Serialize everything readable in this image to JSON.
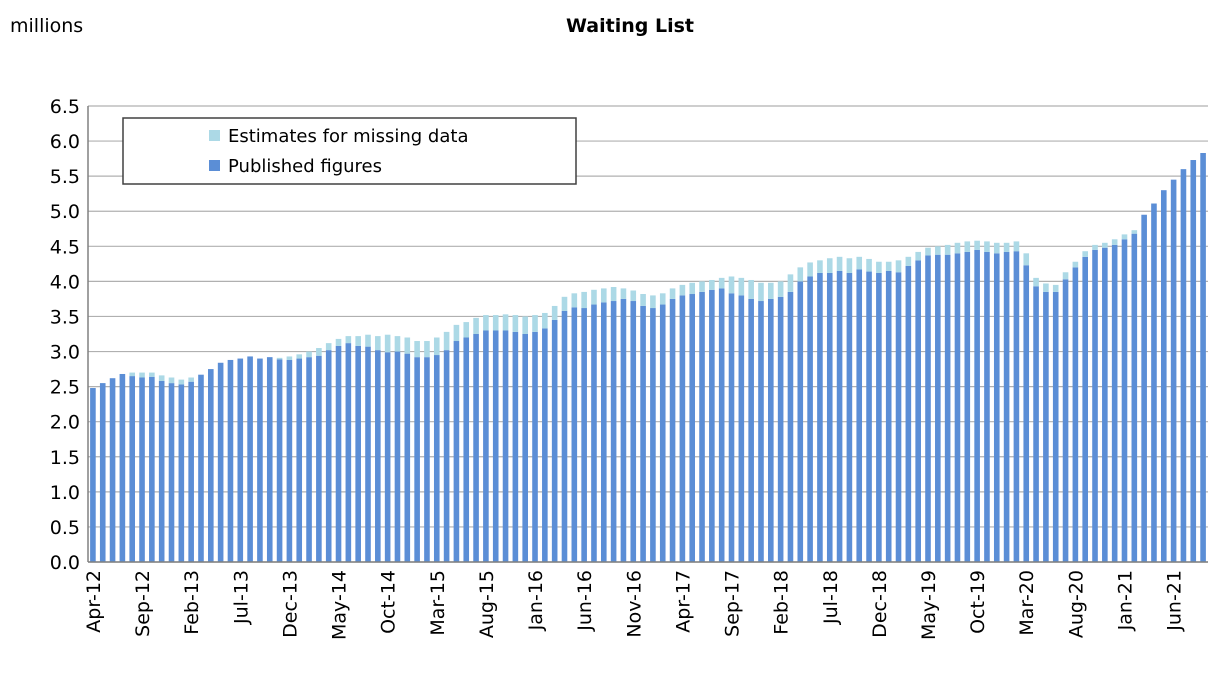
{
  "chart_data": {
    "type": "bar",
    "stacked": true,
    "title": "Waiting List",
    "y_label": "millions",
    "categories": [
      "Apr-12",
      null,
      null,
      null,
      null,
      "Sep-12",
      null,
      null,
      null,
      null,
      "Feb-13",
      null,
      null,
      null,
      null,
      "Jul-13",
      null,
      null,
      null,
      null,
      "Dec-13",
      null,
      null,
      null,
      null,
      "May-14",
      null,
      null,
      null,
      null,
      "Oct-14",
      null,
      null,
      null,
      null,
      "Mar-15",
      null,
      null,
      null,
      null,
      "Aug-15",
      null,
      null,
      null,
      null,
      "Jan-16",
      null,
      null,
      null,
      null,
      "Jun-16",
      null,
      null,
      null,
      null,
      "Nov-16",
      null,
      null,
      null,
      null,
      "Apr-17",
      null,
      null,
      null,
      null,
      "Sep-17",
      null,
      null,
      null,
      null,
      "Feb-18",
      null,
      null,
      null,
      null,
      "Jul-18",
      null,
      null,
      null,
      null,
      "Dec-18",
      null,
      null,
      null,
      null,
      "May-19",
      null,
      null,
      null,
      null,
      "Oct-19",
      null,
      null,
      null,
      null,
      "Mar-20",
      null,
      null,
      null,
      null,
      "Aug-20",
      null,
      null,
      null,
      null,
      "Jan-21",
      null,
      null,
      null,
      null,
      "Jun-21",
      null,
      null,
      null
    ],
    "series": [
      {
        "name": "Published figures",
        "color": "#5b8ed6",
        "values": [
          2.48,
          2.55,
          2.62,
          2.68,
          2.65,
          2.63,
          2.64,
          2.58,
          2.55,
          2.53,
          2.57,
          2.67,
          2.75,
          2.84,
          2.88,
          2.9,
          2.93,
          2.9,
          2.92,
          2.89,
          2.88,
          2.9,
          2.92,
          2.94,
          3.02,
          3.08,
          3.12,
          3.08,
          3.07,
          3.02,
          2.99,
          3.0,
          2.97,
          2.92,
          2.92,
          2.95,
          3.02,
          3.15,
          3.2,
          3.25,
          3.3,
          3.3,
          3.3,
          3.28,
          3.25,
          3.28,
          3.33,
          3.45,
          3.58,
          3.63,
          3.62,
          3.67,
          3.7,
          3.72,
          3.75,
          3.72,
          3.65,
          3.62,
          3.67,
          3.75,
          3.8,
          3.82,
          3.85,
          3.88,
          3.9,
          3.83,
          3.8,
          3.75,
          3.72,
          3.75,
          3.78,
          3.85,
          4.0,
          4.07,
          4.12,
          4.12,
          4.15,
          4.12,
          4.17,
          4.14,
          4.12,
          4.15,
          4.13,
          4.22,
          4.3,
          4.37,
          4.38,
          4.38,
          4.4,
          4.42,
          4.45,
          4.42,
          4.4,
          4.42,
          4.43,
          4.23,
          3.93,
          3.85,
          3.85,
          4.03,
          4.2,
          4.35,
          4.45,
          4.48,
          4.52,
          4.6,
          4.68,
          4.95,
          5.11,
          5.3,
          5.45,
          5.6,
          5.73,
          5.83
        ]
      },
      {
        "name": "Estimates for missing data",
        "color": "#acd9e6",
        "values": [
          0,
          0,
          0,
          0,
          0.05,
          0.07,
          0.06,
          0.08,
          0.08,
          0.07,
          0.06,
          0,
          0,
          0,
          0,
          0,
          0,
          0,
          0,
          0.02,
          0.05,
          0.06,
          0.08,
          0.11,
          0.1,
          0.1,
          0.1,
          0.14,
          0.17,
          0.2,
          0.25,
          0.22,
          0.23,
          0.23,
          0.23,
          0.25,
          0.26,
          0.23,
          0.22,
          0.23,
          0.22,
          0.22,
          0.23,
          0.24,
          0.25,
          0.24,
          0.22,
          0.2,
          0.2,
          0.2,
          0.23,
          0.21,
          0.2,
          0.2,
          0.15,
          0.15,
          0.17,
          0.18,
          0.16,
          0.15,
          0.15,
          0.16,
          0.15,
          0.14,
          0.15,
          0.24,
          0.25,
          0.27,
          0.26,
          0.23,
          0.22,
          0.25,
          0.2,
          0.2,
          0.18,
          0.21,
          0.2,
          0.21,
          0.18,
          0.18,
          0.16,
          0.13,
          0.17,
          0.13,
          0.12,
          0.11,
          0.12,
          0.14,
          0.15,
          0.15,
          0.13,
          0.15,
          0.15,
          0.13,
          0.14,
          0.17,
          0.12,
          0.12,
          0.1,
          0.1,
          0.08,
          0.08,
          0.07,
          0.07,
          0.08,
          0.07,
          0.05,
          0,
          0,
          0,
          0,
          0,
          0,
          0
        ]
      }
    ],
    "ylim": [
      0,
      6.5
    ],
    "yticks": [
      {
        "value": 0,
        "label": "0.0"
      },
      0.5,
      {
        "value": 1,
        "label": "1.0"
      },
      1.5,
      {
        "value": 2,
        "label": "2.0"
      },
      2.5,
      {
        "value": 3,
        "label": "3.0"
      },
      3.5,
      {
        "value": 4,
        "label": "4.0"
      },
      4.5,
      {
        "value": 5,
        "label": "5.0"
      },
      5.5,
      {
        "value": 6,
        "label": "6.0"
      },
      6.5
    ],
    "grid": true,
    "legend": "top-left"
  }
}
